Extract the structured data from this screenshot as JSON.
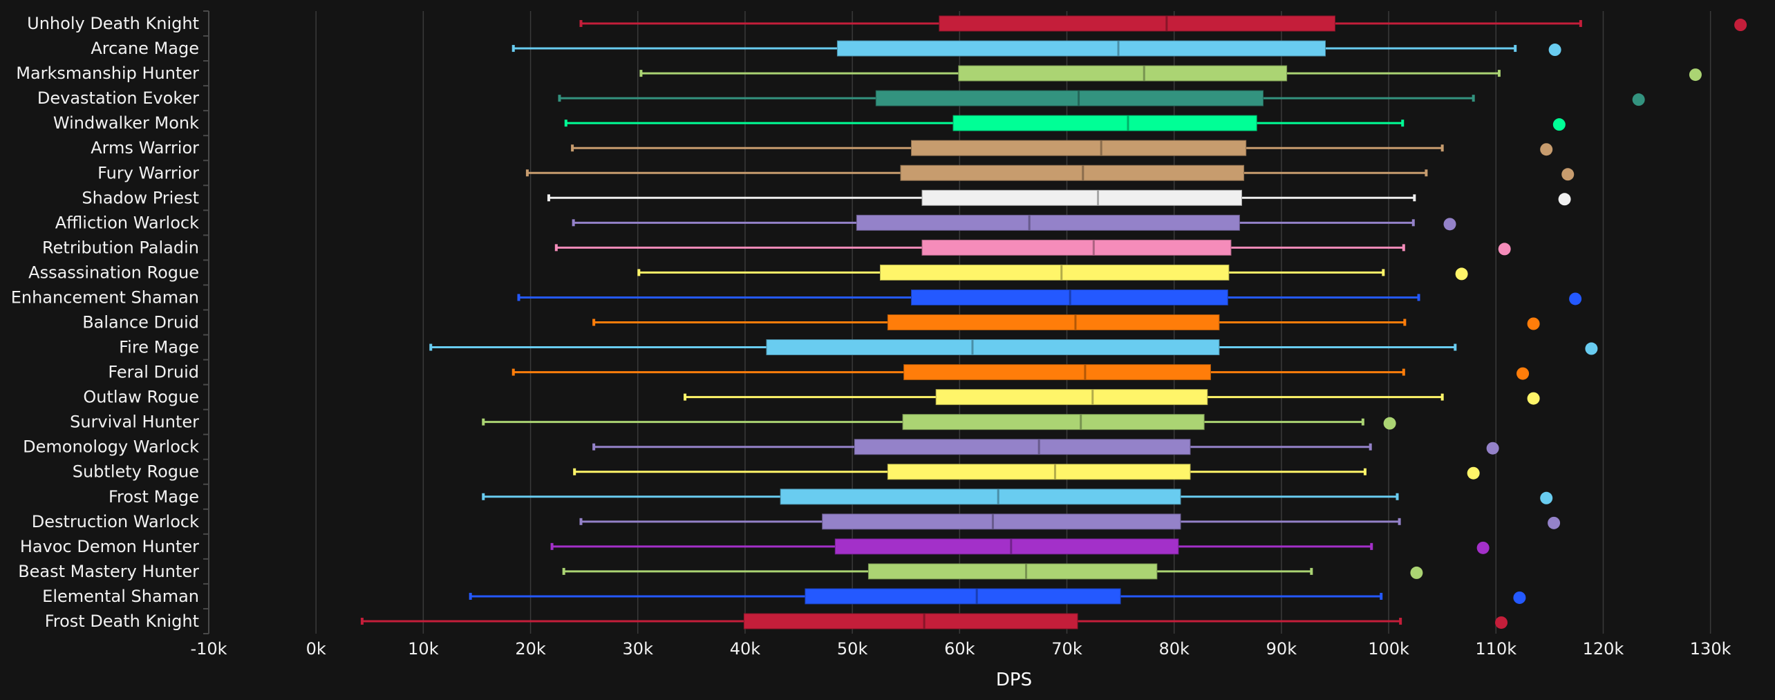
{
  "chart_data": {
    "type": "boxplot",
    "orientation": "horizontal",
    "title": "",
    "xlabel": "DPS",
    "ylabel": "",
    "xlim": [
      -10000,
      135500
    ],
    "xticks": [
      -10000,
      0,
      10000,
      20000,
      30000,
      40000,
      50000,
      60000,
      70000,
      80000,
      90000,
      100000,
      110000,
      120000,
      130000
    ],
    "xtick_labels": [
      "-10k",
      "0k",
      "10k",
      "20k",
      "30k",
      "40k",
      "50k",
      "60k",
      "70k",
      "80k",
      "90k",
      "100k",
      "110k",
      "120k",
      "130k"
    ],
    "grid": "vertical",
    "legend": "none",
    "series": [
      {
        "name": "Unholy Death Knight",
        "color": "#C41E3A",
        "min": 24700,
        "q1": 58100,
        "median": 79300,
        "q3": 95000,
        "max": 117900,
        "outlier": 132800
      },
      {
        "name": "Arcane Mage",
        "color": "#69CCF0",
        "min": 18400,
        "q1": 48600,
        "median": 74800,
        "q3": 94100,
        "max": 111800,
        "outlier": 115500
      },
      {
        "name": "Marksmanship Hunter",
        "color": "#ABD473",
        "min": 30300,
        "q1": 59900,
        "median": 77200,
        "q3": 90500,
        "max": 110300,
        "outlier": 128600
      },
      {
        "name": "Devastation Evoker",
        "color": "#33937F",
        "min": 22700,
        "q1": 52200,
        "median": 71100,
        "q3": 88300,
        "max": 107900,
        "outlier": 123300
      },
      {
        "name": "Windwalker Monk",
        "color": "#00FF96",
        "min": 23300,
        "q1": 59400,
        "median": 75700,
        "q3": 87700,
        "max": 101300,
        "outlier": 115900
      },
      {
        "name": "Arms Warrior",
        "color": "#C79C6E",
        "min": 23900,
        "q1": 55500,
        "median": 73200,
        "q3": 86700,
        "max": 105000,
        "outlier": 114700
      },
      {
        "name": "Fury Warrior",
        "color": "#C79C6E",
        "min": 19700,
        "q1": 54500,
        "median": 71500,
        "q3": 86500,
        "max": 103500,
        "outlier": 116700
      },
      {
        "name": "Shadow Priest",
        "color": "#F0F0F0",
        "min": 21700,
        "q1": 56500,
        "median": 72900,
        "q3": 86300,
        "max": 102400,
        "outlier": 116400
      },
      {
        "name": "Affliction Warlock",
        "color": "#9482C9",
        "min": 24000,
        "q1": 50400,
        "median": 66500,
        "q3": 86100,
        "max": 102300,
        "outlier": 105700
      },
      {
        "name": "Retribution Paladin",
        "color": "#F58CBA",
        "min": 22400,
        "q1": 56500,
        "median": 72500,
        "q3": 85300,
        "max": 101400,
        "outlier": 110800
      },
      {
        "name": "Assassination Rogue",
        "color": "#FFF569",
        "min": 30100,
        "q1": 52600,
        "median": 69500,
        "q3": 85100,
        "max": 99500,
        "outlier": 106800
      },
      {
        "name": "Enhancement Shaman",
        "color": "#2459FF",
        "min": 18900,
        "q1": 55500,
        "median": 70300,
        "q3": 85000,
        "max": 102800,
        "outlier": 117400
      },
      {
        "name": "Balance Druid",
        "color": "#FF7D0A",
        "min": 25900,
        "q1": 53300,
        "median": 70800,
        "q3": 84200,
        "max": 101500,
        "outlier": 113500
      },
      {
        "name": "Fire Mage",
        "color": "#69CCF0",
        "min": 10700,
        "q1": 42000,
        "median": 61200,
        "q3": 84200,
        "max": 106200,
        "outlier": 118900
      },
      {
        "name": "Feral Druid",
        "color": "#FF7D0A",
        "min": 18400,
        "q1": 54800,
        "median": 71700,
        "q3": 83400,
        "max": 101400,
        "outlier": 112500
      },
      {
        "name": "Outlaw Rogue",
        "color": "#FFF569",
        "min": 34400,
        "q1": 57800,
        "median": 72400,
        "q3": 83100,
        "max": 105000,
        "outlier": 113500
      },
      {
        "name": "Survival Hunter",
        "color": "#ABD473",
        "min": 15600,
        "q1": 54700,
        "median": 71300,
        "q3": 82800,
        "max": 97600,
        "outlier": 100100
      },
      {
        "name": "Demonology Warlock",
        "color": "#9482C9",
        "min": 25900,
        "q1": 50200,
        "median": 67400,
        "q3": 81500,
        "max": 98300,
        "outlier": 109700
      },
      {
        "name": "Subtlety Rogue",
        "color": "#FFF569",
        "min": 24100,
        "q1": 53300,
        "median": 68900,
        "q3": 81500,
        "max": 97800,
        "outlier": 107900
      },
      {
        "name": "Frost Mage",
        "color": "#69CCF0",
        "min": 15600,
        "q1": 43300,
        "median": 63600,
        "q3": 80600,
        "max": 100800,
        "outlier": 114700
      },
      {
        "name": "Destruction Warlock",
        "color": "#9482C9",
        "min": 24700,
        "q1": 47200,
        "median": 63100,
        "q3": 80600,
        "max": 101000,
        "outlier": 115400
      },
      {
        "name": "Havoc Demon Hunter",
        "color": "#A330C9",
        "min": 22000,
        "q1": 48400,
        "median": 64800,
        "q3": 80400,
        "max": 98400,
        "outlier": 108800
      },
      {
        "name": "Beast Mastery Hunter",
        "color": "#ABD473",
        "min": 23100,
        "q1": 51500,
        "median": 66200,
        "q3": 78400,
        "max": 92800,
        "outlier": 102600
      },
      {
        "name": "Elemental Shaman",
        "color": "#2459FF",
        "min": 14400,
        "q1": 45600,
        "median": 61600,
        "q3": 75000,
        "max": 99300,
        "outlier": 112200
      },
      {
        "name": "Frost Death Knight",
        "color": "#C41E3A",
        "min": 4300,
        "q1": 39900,
        "median": 56700,
        "q3": 71000,
        "max": 101100,
        "outlier": 110500
      }
    ]
  },
  "colors": {
    "background": "#141414",
    "grid": "#3a3a3a",
    "axis": "#4a4a4a",
    "text": "#f2f2f2"
  }
}
